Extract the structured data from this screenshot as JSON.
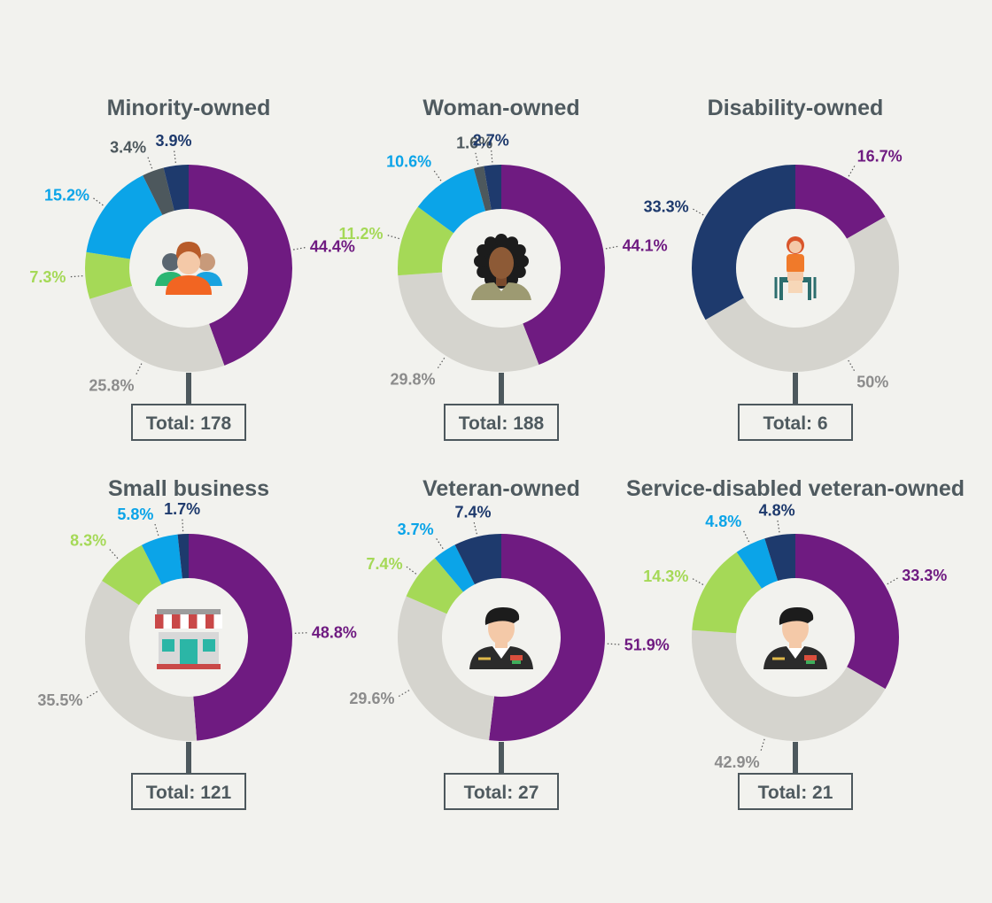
{
  "colors": {
    "background": "#f2f2ee",
    "purple": "#6f1b81",
    "gray": "#d5d4ce",
    "green": "#a5d957",
    "blue": "#0ba4e8",
    "slate": "#4d585d",
    "navy": "#1e3a6d",
    "gray_label": "#8c8c8c",
    "text": "#4f5a5f"
  },
  "chart_data": [
    {
      "type": "pie",
      "title": "Minority-owned",
      "total_label": "Total: 178",
      "icon": "group-of-people-icon",
      "slices": [
        {
          "value": 44.4,
          "label": "44.4%",
          "color": "purple"
        },
        {
          "value": 25.8,
          "label": "25.8%",
          "color": "gray"
        },
        {
          "value": 7.3,
          "label": "7.3%",
          "color": "green"
        },
        {
          "value": 15.2,
          "label": "15.2%",
          "color": "blue"
        },
        {
          "value": 3.4,
          "label": "3.4%",
          "color": "slate"
        },
        {
          "value": 3.9,
          "label": "3.9%",
          "color": "navy"
        }
      ]
    },
    {
      "type": "pie",
      "title": "Woman-owned",
      "total_label": "Total: 188",
      "icon": "woman-icon",
      "slices": [
        {
          "value": 44.1,
          "label": "44.1%",
          "color": "purple"
        },
        {
          "value": 29.8,
          "label": "29.8%",
          "color": "gray"
        },
        {
          "value": 11.2,
          "label": "11.2%",
          "color": "green"
        },
        {
          "value": 10.6,
          "label": "10.6%",
          "color": "blue"
        },
        {
          "value": 1.6,
          "label": "1.6%",
          "color": "slate"
        },
        {
          "value": 2.7,
          "label": "2.7%",
          "color": "navy"
        }
      ]
    },
    {
      "type": "pie",
      "title": "Disability-owned",
      "total_label": "Total: 6",
      "icon": "wheelchair-person-icon",
      "slices": [
        {
          "value": 16.7,
          "label": "16.7%",
          "color": "purple"
        },
        {
          "value": 50,
          "label": "50%",
          "color": "gray"
        },
        {
          "value": 33.3,
          "label": "33.3%",
          "color": "navy"
        }
      ]
    },
    {
      "type": "pie",
      "title": "Small business",
      "total_label": "Total: 121",
      "icon": "storefront-icon",
      "slices": [
        {
          "value": 48.8,
          "label": "48.8%",
          "color": "purple"
        },
        {
          "value": 35.5,
          "label": "35.5%",
          "color": "gray"
        },
        {
          "value": 8.3,
          "label": "8.3%",
          "color": "green"
        },
        {
          "value": 5.8,
          "label": "5.8%",
          "color": "blue"
        },
        {
          "value": 1.7,
          "label": "1.7%",
          "color": "navy"
        }
      ]
    },
    {
      "type": "pie",
      "title": "Veteran-owned",
      "total_label": "Total: 27",
      "icon": "soldier-icon",
      "slices": [
        {
          "value": 51.9,
          "label": "51.9%",
          "color": "purple"
        },
        {
          "value": 29.6,
          "label": "29.6%",
          "color": "gray"
        },
        {
          "value": 7.4,
          "label": "7.4%",
          "color": "green"
        },
        {
          "value": 3.7,
          "label": "3.7%",
          "color": "blue"
        },
        {
          "value": 7.4,
          "label": "7.4%",
          "color": "navy"
        }
      ]
    },
    {
      "type": "pie",
      "title": "Service-disabled veteran-owned",
      "total_label": "Total: 21",
      "icon": "soldier-icon",
      "slices": [
        {
          "value": 33.3,
          "label": "33.3%",
          "color": "purple"
        },
        {
          "value": 42.9,
          "label": "42.9%",
          "color": "gray"
        },
        {
          "value": 14.3,
          "label": "14.3%",
          "color": "green"
        },
        {
          "value": 4.8,
          "label": "4.8%",
          "color": "blue"
        },
        {
          "value": 4.8,
          "label": "4.8%",
          "color": "navy"
        }
      ]
    }
  ]
}
